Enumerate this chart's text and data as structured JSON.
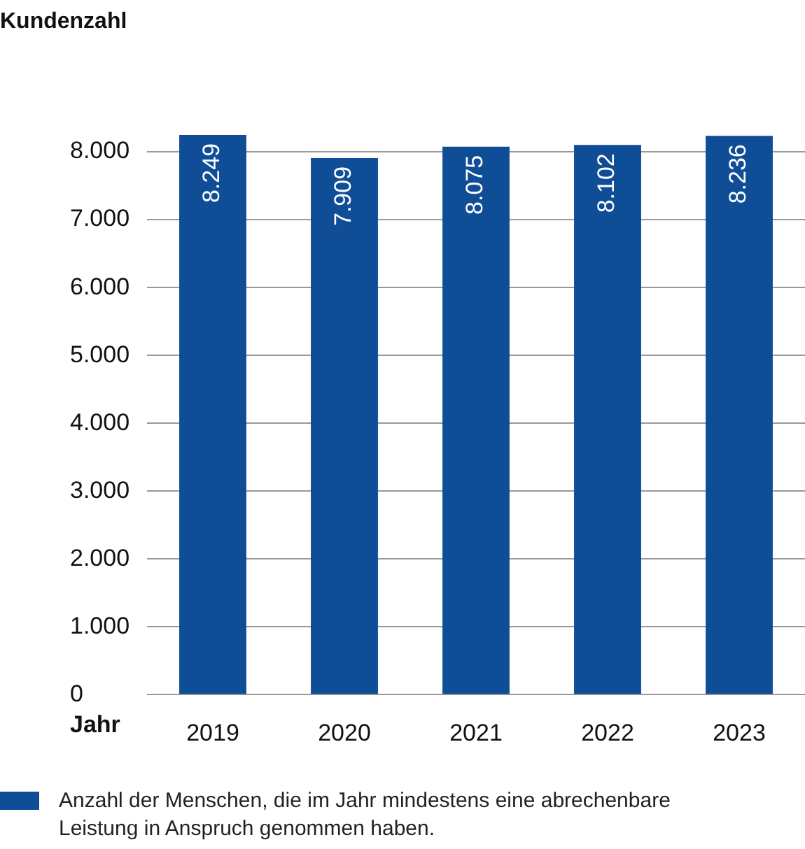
{
  "chart_data": {
    "type": "bar",
    "title": "Kundenzahl",
    "xlabel": "Jahr",
    "categories": [
      "2019",
      "2020",
      "2021",
      "2022",
      "2023"
    ],
    "series": [
      {
        "name": "Anzahl der Menschen, die im Jahr mindestens eine abrechenbare Leistung in Anspruch genommen haben.",
        "color": "#0f4e97",
        "values": [
          8249,
          7909,
          8075,
          8102,
          8236
        ]
      }
    ],
    "ylim": [
      0,
      8300
    ],
    "yticks": [
      {
        "value": 0,
        "label": "0"
      },
      {
        "value": 1000,
        "label": "1.000"
      },
      {
        "value": 2000,
        "label": "2.000"
      },
      {
        "value": 3000,
        "label": "3.000"
      },
      {
        "value": 4000,
        "label": "4.000"
      },
      {
        "value": 5000,
        "label": "5.000"
      },
      {
        "value": 6000,
        "label": "6.000"
      },
      {
        "value": 7000,
        "label": "7.000"
      },
      {
        "value": 8000,
        "label": "8.000"
      }
    ],
    "value_labels": [
      "8.249",
      "7.909",
      "8.075",
      "8.102",
      "8.236"
    ],
    "grid": "y",
    "legend": "bottom left"
  }
}
